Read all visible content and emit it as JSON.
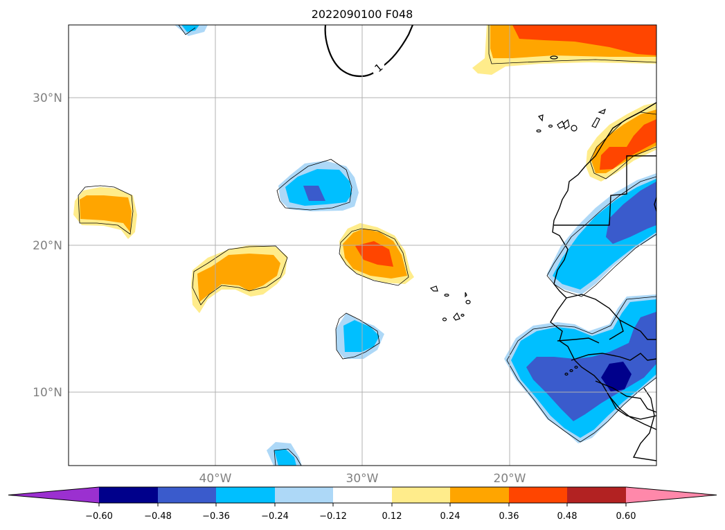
{
  "title": "2022090100 F048",
  "lat_labels": [
    "30°N",
    "20°N",
    "10°N"
  ],
  "lon_labels": [
    "40°W",
    "30°W",
    "20°W"
  ],
  "contour_label": "1",
  "colorbar": {
    "ticks": [
      "−0.60",
      "−0.48",
      "−0.36",
      "−0.24",
      "−0.12",
      "0.12",
      "0.24",
      "0.36",
      "0.48",
      "0.60"
    ],
    "colors": [
      "#9b30d0",
      "#00008b",
      "#3a5bcc",
      "#00bfff",
      "#add8f7",
      "#ffffff",
      "#ffec8b",
      "#ffa500",
      "#ff4500",
      "#b22222",
      "#ff88aa"
    ]
  },
  "colors": {
    "light_blue": "#add8f7",
    "blue": "#00bfff",
    "mid_blue": "#3a5bcc",
    "dark_blue": "#00008b",
    "yellow": "#ffec8b",
    "orange": "#ffa500",
    "red_orange": "#ff4500",
    "gridline": "#b0b0b0",
    "label_gray": "#808080"
  }
}
